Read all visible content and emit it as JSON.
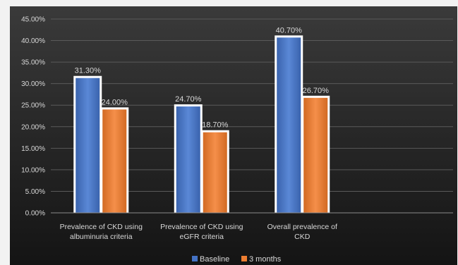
{
  "chart_data": {
    "type": "bar",
    "categories": [
      [
        "Prevalence of CKD using",
        "albuminuria criteria"
      ],
      [
        "Prevalence of CKD using",
        "eGFR criteria"
      ],
      [
        "Overall prevalence of",
        "CKD"
      ],
      [
        "",
        ""
      ]
    ],
    "series": [
      {
        "name": "Baseline",
        "values": [
          31.3,
          24.7,
          40.7,
          null
        ],
        "labels": [
          "31.30%",
          "24.70%",
          "40.70%",
          ""
        ]
      },
      {
        "name": "3 months",
        "values": [
          24.0,
          18.7,
          26.7,
          null
        ],
        "labels": [
          "24.00%",
          "18.70%",
          "26.70%",
          ""
        ]
      }
    ],
    "y_ticks": [
      "0.00%",
      "5.00%",
      "10.00%",
      "15.00%",
      "20.00%",
      "25.00%",
      "30.00%",
      "35.00%",
      "40.00%",
      "45.00%"
    ],
    "ylim": [
      0,
      45
    ],
    "grid": true,
    "legend_position": "bottom",
    "colors": {
      "background_outer": "#f2f2f2",
      "background_top": "#3a3a3a",
      "background_bottom": "#141414",
      "baseline": "#4472c4",
      "three_months": "#ed7d31",
      "grid": "#5a5a5a",
      "text": "#d9d9d9"
    }
  }
}
